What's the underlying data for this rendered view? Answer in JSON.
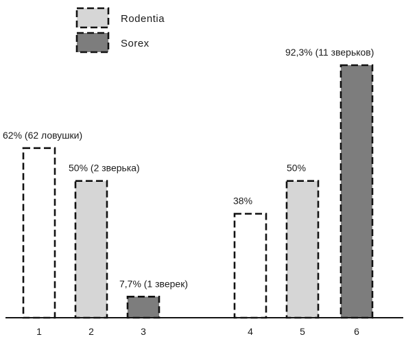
{
  "chart_data": {
    "type": "bar",
    "categories": [
      "1",
      "2",
      "3",
      "4",
      "5",
      "6"
    ],
    "values": [
      62,
      50,
      7.7,
      38,
      50,
      92.3
    ],
    "data_labels": [
      "62% (62 ловушки)",
      "50% (2 зверька)",
      "7,7% (1 зверек)",
      "38%",
      "50%",
      "92,3% (11 зверьков)"
    ],
    "bar_groups": [
      "none",
      "Rodentia",
      "Sorex",
      "none",
      "Rodentia",
      "Sorex"
    ],
    "legend": [
      {
        "name": "Rodentia",
        "color": "#d6d6d6"
      },
      {
        "name": "Sorex",
        "color": "#7d7d7d"
      }
    ],
    "bar_colors": [
      "#ffffff",
      "#d6d6d6",
      "#7d7d7d",
      "#ffffff",
      "#d6d6d6",
      "#7d7d7d"
    ],
    "title": "",
    "xlabel": "",
    "ylabel": "",
    "ylim": [
      0,
      100
    ],
    "legend_position": "top-center",
    "grid": false
  }
}
